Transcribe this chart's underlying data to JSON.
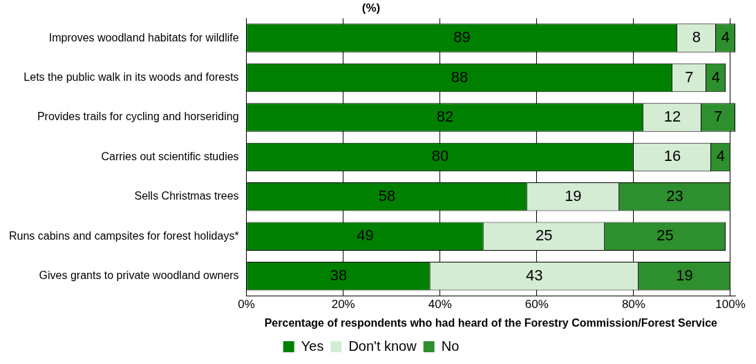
{
  "chart_data": {
    "type": "bar",
    "orientation": "horizontal",
    "stacked": true,
    "title": "(%)",
    "xlabel": "Percentage of respondents who had heard of the Forestry Commission/Forest Service",
    "categories": [
      "Improves woodland habitats for wildlife",
      "Lets the public walk in its woods and forests",
      "Provides trails for cycling and horseriding",
      "Carries out scientific studies",
      "Sells Christmas trees",
      "Runs cabins and campsites for forest holidays*",
      "Gives grants to private woodland owners"
    ],
    "series": [
      {
        "name": "Yes",
        "color": "#008000",
        "values": [
          89,
          88,
          82,
          80,
          58,
          49,
          38
        ]
      },
      {
        "name": "Don't know",
        "color": "#d4ebd4",
        "values": [
          8,
          7,
          12,
          16,
          19,
          25,
          43
        ]
      },
      {
        "name": "No",
        "color": "#2e8f2e",
        "values": [
          4,
          4,
          7,
          4,
          23,
          25,
          19
        ]
      }
    ],
    "xlim": [
      0,
      101
    ],
    "xticks": [
      {
        "value": 0,
        "label": "0%"
      },
      {
        "value": 20,
        "label": "20%"
      },
      {
        "value": 40,
        "label": "40%"
      },
      {
        "value": 60,
        "label": "60%"
      },
      {
        "value": 80,
        "label": "80%"
      },
      {
        "value": 100,
        "label": "100%"
      }
    ],
    "grid": "x",
    "legend": "bottom",
    "data_labels": true
  }
}
